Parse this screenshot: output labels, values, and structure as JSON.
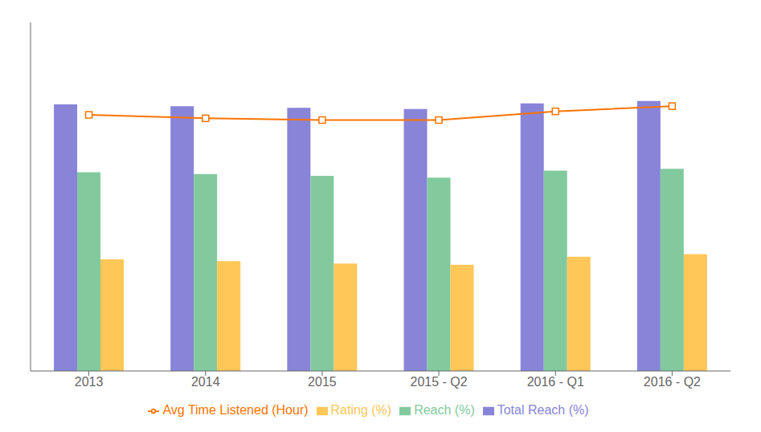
{
  "chart_data": {
    "type": "bar",
    "categories": [
      "2013",
      "2014",
      "2015",
      "2015 - Q2",
      "2016 - Q1",
      "2016 - Q2"
    ],
    "series": [
      {
        "name": "Total Reach (%)",
        "type": "bar",
        "color": "#8884d8",
        "values": [
          76.5,
          76.0,
          75.5,
          75.2,
          76.8,
          77.5
        ]
      },
      {
        "name": "Reach (%)",
        "type": "bar",
        "color": "#82ca9d",
        "values": [
          57.0,
          56.5,
          56.0,
          55.5,
          57.5,
          58.0
        ]
      },
      {
        "name": "Rating (%)",
        "type": "bar",
        "color": "#ffc658",
        "values": [
          32.0,
          31.5,
          30.8,
          30.5,
          32.8,
          33.5
        ]
      },
      {
        "name": "Avg Time Listened (Hour)",
        "type": "line",
        "color": "#ff7300",
        "marker": "square",
        "values": [
          73.5,
          72.5,
          72.0,
          72.0,
          74.5,
          76.0
        ]
      }
    ],
    "ylim": [
      0,
      100
    ],
    "grid": false,
    "legend": "bottom",
    "tick_labels": "x"
  }
}
